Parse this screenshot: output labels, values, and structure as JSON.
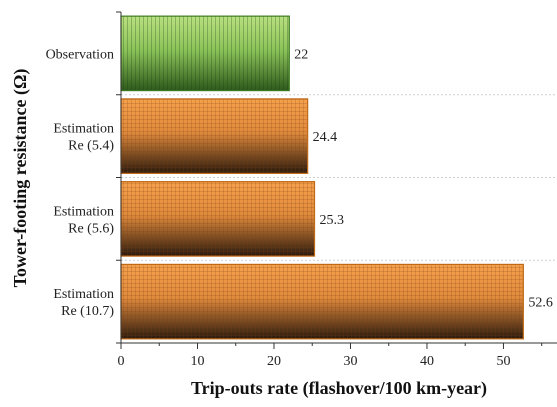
{
  "chart_data": {
    "type": "bar",
    "orientation": "horizontal",
    "categories": [
      [
        "Observation"
      ],
      [
        "Estimation",
        "Re (5.4)"
      ],
      [
        "Estimation",
        "Re (5.6)"
      ],
      [
        "Estimation",
        "Re (10.7)"
      ]
    ],
    "values": [
      22,
      24.4,
      25.3,
      52.6
    ],
    "value_labels": [
      "22",
      "24.4",
      "25.3",
      "52.6"
    ],
    "xlabel": "Trip-outs rate (flashover/100 km-year)",
    "ylabel": "Tower-footing resistance (Ω)",
    "xlim": [
      0,
      57
    ],
    "xticks": [
      0,
      10,
      20,
      30,
      40,
      50
    ],
    "colors": {
      "observation": {
        "light": "#b9e07f",
        "dark": "#2e5a1c",
        "edge": "#3d7a22"
      },
      "estimation": {
        "light": "#f6a14c",
        "dark": "#2a1a0e",
        "edge": "#c06a18"
      },
      "separator": "#cfcfcf"
    }
  }
}
